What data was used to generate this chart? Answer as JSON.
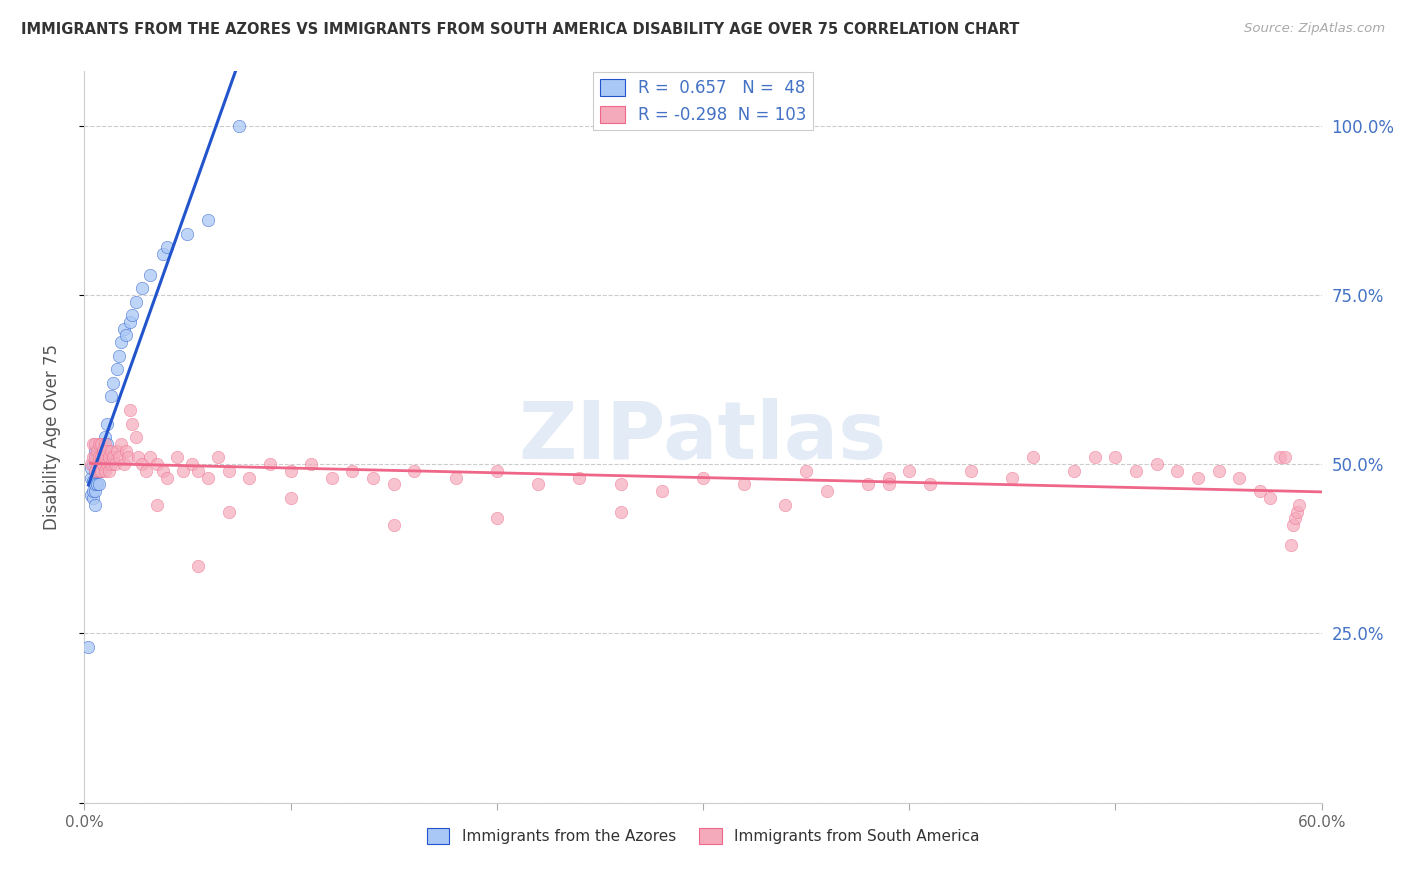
{
  "title": "IMMIGRANTS FROM THE AZORES VS IMMIGRANTS FROM SOUTH AMERICA DISABILITY AGE OVER 75 CORRELATION CHART",
  "source": "Source: ZipAtlas.com",
  "ylabel": "Disability Age Over 75",
  "watermark": "ZIPatlas",
  "legend_label1": "Immigrants from the Azores",
  "legend_label2": "Immigrants from South America",
  "R1": 0.657,
  "N1": 48,
  "R2": -0.298,
  "N2": 103,
  "color_blue": "#aac8f5",
  "color_pink": "#f5aabb",
  "color_blue_line": "#2255cc",
  "color_pink_line": "#ee6688",
  "xlim": [
    0.0,
    0.6
  ],
  "ylim": [
    0.0,
    1.08
  ],
  "x_ticks": [
    0.0,
    0.1,
    0.2,
    0.3,
    0.4,
    0.5,
    0.6
  ],
  "y_ticks": [
    0.0,
    0.25,
    0.5,
    0.75,
    1.0
  ],
  "azores_x": [
    0.002,
    0.003,
    0.003,
    0.003,
    0.004,
    0.004,
    0.004,
    0.004,
    0.005,
    0.005,
    0.005,
    0.005,
    0.005,
    0.005,
    0.005,
    0.006,
    0.006,
    0.006,
    0.007,
    0.007,
    0.007,
    0.007,
    0.008,
    0.008,
    0.008,
    0.009,
    0.009,
    0.01,
    0.01,
    0.011,
    0.011,
    0.013,
    0.014,
    0.016,
    0.017,
    0.018,
    0.019,
    0.02,
    0.022,
    0.023,
    0.025,
    0.028,
    0.032,
    0.038,
    0.04,
    0.05,
    0.06,
    0.075
  ],
  "azores_y": [
    0.23,
    0.455,
    0.48,
    0.495,
    0.45,
    0.46,
    0.475,
    0.5,
    0.44,
    0.46,
    0.47,
    0.49,
    0.5,
    0.51,
    0.52,
    0.47,
    0.49,
    0.51,
    0.47,
    0.49,
    0.5,
    0.52,
    0.49,
    0.51,
    0.53,
    0.5,
    0.53,
    0.51,
    0.54,
    0.53,
    0.56,
    0.6,
    0.62,
    0.64,
    0.66,
    0.68,
    0.7,
    0.69,
    0.71,
    0.72,
    0.74,
    0.76,
    0.78,
    0.81,
    0.82,
    0.84,
    0.86,
    1.0
  ],
  "sa_x": [
    0.003,
    0.004,
    0.004,
    0.005,
    0.005,
    0.005,
    0.006,
    0.006,
    0.007,
    0.007,
    0.007,
    0.008,
    0.008,
    0.008,
    0.009,
    0.009,
    0.01,
    0.01,
    0.01,
    0.011,
    0.011,
    0.012,
    0.012,
    0.013,
    0.013,
    0.014,
    0.015,
    0.016,
    0.017,
    0.018,
    0.019,
    0.02,
    0.021,
    0.022,
    0.023,
    0.025,
    0.026,
    0.028,
    0.03,
    0.032,
    0.035,
    0.038,
    0.04,
    0.045,
    0.048,
    0.052,
    0.055,
    0.06,
    0.065,
    0.07,
    0.08,
    0.09,
    0.1,
    0.11,
    0.12,
    0.13,
    0.14,
    0.15,
    0.16,
    0.18,
    0.2,
    0.22,
    0.24,
    0.26,
    0.28,
    0.3,
    0.32,
    0.35,
    0.36,
    0.38,
    0.39,
    0.4,
    0.41,
    0.43,
    0.45,
    0.46,
    0.48,
    0.49,
    0.5,
    0.51,
    0.52,
    0.53,
    0.54,
    0.55,
    0.56,
    0.57,
    0.575,
    0.58,
    0.582,
    0.585,
    0.586,
    0.587,
    0.588,
    0.589,
    0.39,
    0.34,
    0.26,
    0.2,
    0.15,
    0.1,
    0.07,
    0.055,
    0.035
  ],
  "sa_y": [
    0.5,
    0.51,
    0.53,
    0.49,
    0.51,
    0.53,
    0.5,
    0.52,
    0.49,
    0.51,
    0.53,
    0.49,
    0.51,
    0.53,
    0.5,
    0.52,
    0.49,
    0.51,
    0.53,
    0.5,
    0.52,
    0.49,
    0.51,
    0.5,
    0.52,
    0.51,
    0.5,
    0.52,
    0.51,
    0.53,
    0.5,
    0.52,
    0.51,
    0.58,
    0.56,
    0.54,
    0.51,
    0.5,
    0.49,
    0.51,
    0.5,
    0.49,
    0.48,
    0.51,
    0.49,
    0.5,
    0.49,
    0.48,
    0.51,
    0.49,
    0.48,
    0.5,
    0.49,
    0.5,
    0.48,
    0.49,
    0.48,
    0.47,
    0.49,
    0.48,
    0.49,
    0.47,
    0.48,
    0.47,
    0.46,
    0.48,
    0.47,
    0.49,
    0.46,
    0.47,
    0.48,
    0.49,
    0.47,
    0.49,
    0.48,
    0.51,
    0.49,
    0.51,
    0.51,
    0.49,
    0.5,
    0.49,
    0.48,
    0.49,
    0.48,
    0.46,
    0.45,
    0.51,
    0.51,
    0.38,
    0.41,
    0.42,
    0.43,
    0.44,
    0.47,
    0.44,
    0.43,
    0.42,
    0.41,
    0.45,
    0.43,
    0.35,
    0.44
  ]
}
